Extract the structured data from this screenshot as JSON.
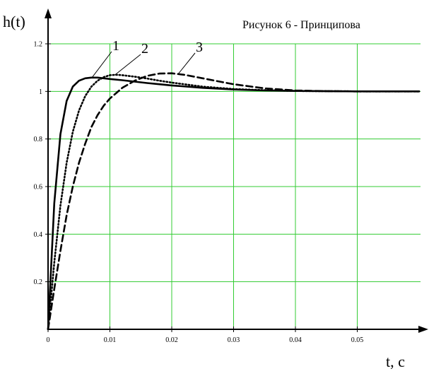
{
  "caption": "Рисунок 6 - Принципова",
  "chart_data": {
    "type": "line",
    "title": "",
    "ylabel": "h(t)",
    "xlabel": "t, c",
    "xlim": [
      0,
      0.06
    ],
    "ylim": [
      0,
      1.2
    ],
    "x_ticks": [
      0,
      0.01,
      0.02,
      0.03,
      0.04,
      0.05
    ],
    "x_tick_labels": [
      "0",
      "0.01",
      "0.02",
      "0.03",
      "0.04",
      "0.05"
    ],
    "y_ticks": [
      0.2,
      0.4,
      0.6,
      0.8,
      1,
      1.2
    ],
    "y_tick_labels": [
      "0.2",
      "0.4",
      "0.6",
      "0.8",
      "1",
      "1.2"
    ],
    "grid": true,
    "grid_color": "#33cc33",
    "series": [
      {
        "name": "1",
        "style": "solid",
        "color": "#000000",
        "x": [
          0,
          0.001,
          0.002,
          0.003,
          0.004,
          0.005,
          0.006,
          0.007,
          0.008,
          0.009,
          0.01,
          0.012,
          0.014,
          0.016,
          0.018,
          0.02,
          0.025,
          0.03,
          0.035,
          0.04,
          0.05,
          0.06
        ],
        "y": [
          0,
          0.53,
          0.82,
          0.96,
          1.02,
          1.045,
          1.055,
          1.058,
          1.058,
          1.055,
          1.052,
          1.047,
          1.041,
          1.035,
          1.03,
          1.025,
          1.015,
          1.008,
          1.004,
          1.002,
          1.0,
          1.0
        ]
      },
      {
        "name": "2",
        "style": "dotted",
        "color": "#000000",
        "x": [
          0,
          0.001,
          0.002,
          0.003,
          0.004,
          0.005,
          0.006,
          0.007,
          0.008,
          0.009,
          0.01,
          0.011,
          0.012,
          0.014,
          0.016,
          0.018,
          0.02,
          0.025,
          0.03,
          0.035,
          0.04,
          0.05,
          0.06
        ],
        "y": [
          0,
          0.28,
          0.52,
          0.7,
          0.83,
          0.92,
          0.98,
          1.02,
          1.045,
          1.06,
          1.068,
          1.07,
          1.068,
          1.062,
          1.054,
          1.045,
          1.037,
          1.02,
          1.01,
          1.005,
          1.002,
          1.0,
          1.0
        ]
      },
      {
        "name": "3",
        "style": "dashed",
        "color": "#000000",
        "x": [
          0,
          0.001,
          0.002,
          0.003,
          0.004,
          0.005,
          0.006,
          0.007,
          0.008,
          0.009,
          0.01,
          0.012,
          0.014,
          0.016,
          0.018,
          0.02,
          0.022,
          0.025,
          0.028,
          0.03,
          0.035,
          0.04,
          0.045,
          0.05,
          0.06
        ],
        "y": [
          0,
          0.17,
          0.33,
          0.48,
          0.6,
          0.7,
          0.78,
          0.85,
          0.9,
          0.94,
          0.97,
          1.015,
          1.045,
          1.065,
          1.075,
          1.076,
          1.07,
          1.055,
          1.04,
          1.03,
          1.013,
          1.004,
          1.001,
          1.0,
          1.0
        ]
      }
    ]
  }
}
